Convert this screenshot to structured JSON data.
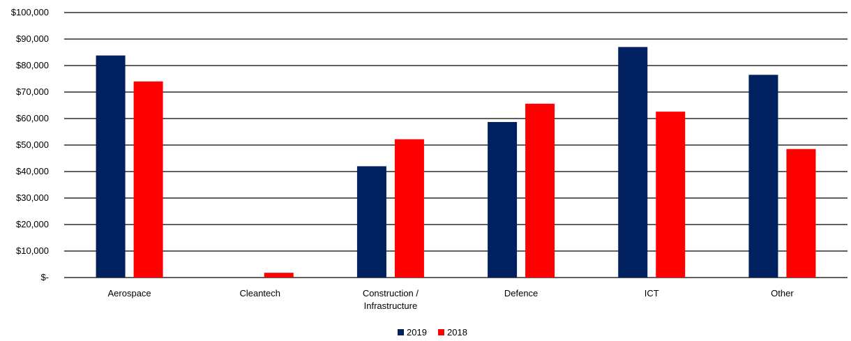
{
  "chart_data": {
    "type": "bar",
    "title": "",
    "xlabel": "",
    "ylabel": "",
    "categories": [
      "Aerospace",
      "Cleantech",
      "Construction / Infrastructure",
      "Defence",
      "ICT",
      "Other"
    ],
    "category_label_lines": [
      [
        "Aerospace"
      ],
      [
        "Cleantech"
      ],
      [
        "Construction /",
        "Infrastructure"
      ],
      [
        "Defence"
      ],
      [
        "ICT"
      ],
      [
        "Other"
      ]
    ],
    "series": [
      {
        "name": "2019",
        "color": "#002060",
        "values": [
          83800,
          0,
          42000,
          58700,
          87000,
          76500
        ]
      },
      {
        "name": "2018",
        "color": "#ff0000",
        "values": [
          74000,
          1800,
          52200,
          65600,
          62600,
          48500
        ]
      }
    ],
    "ylim": [
      0,
      100000
    ],
    "y_ticks": [
      0,
      10000,
      20000,
      30000,
      40000,
      50000,
      60000,
      70000,
      80000,
      90000,
      100000
    ],
    "y_tick_labels": [
      "$-",
      "$10,000",
      "$20,000",
      "$30,000",
      "$40,000",
      "$50,000",
      "$60,000",
      "$70,000",
      "$80,000",
      "$90,000",
      "$100,000"
    ],
    "grid": true,
    "legend": "bottom-center"
  }
}
